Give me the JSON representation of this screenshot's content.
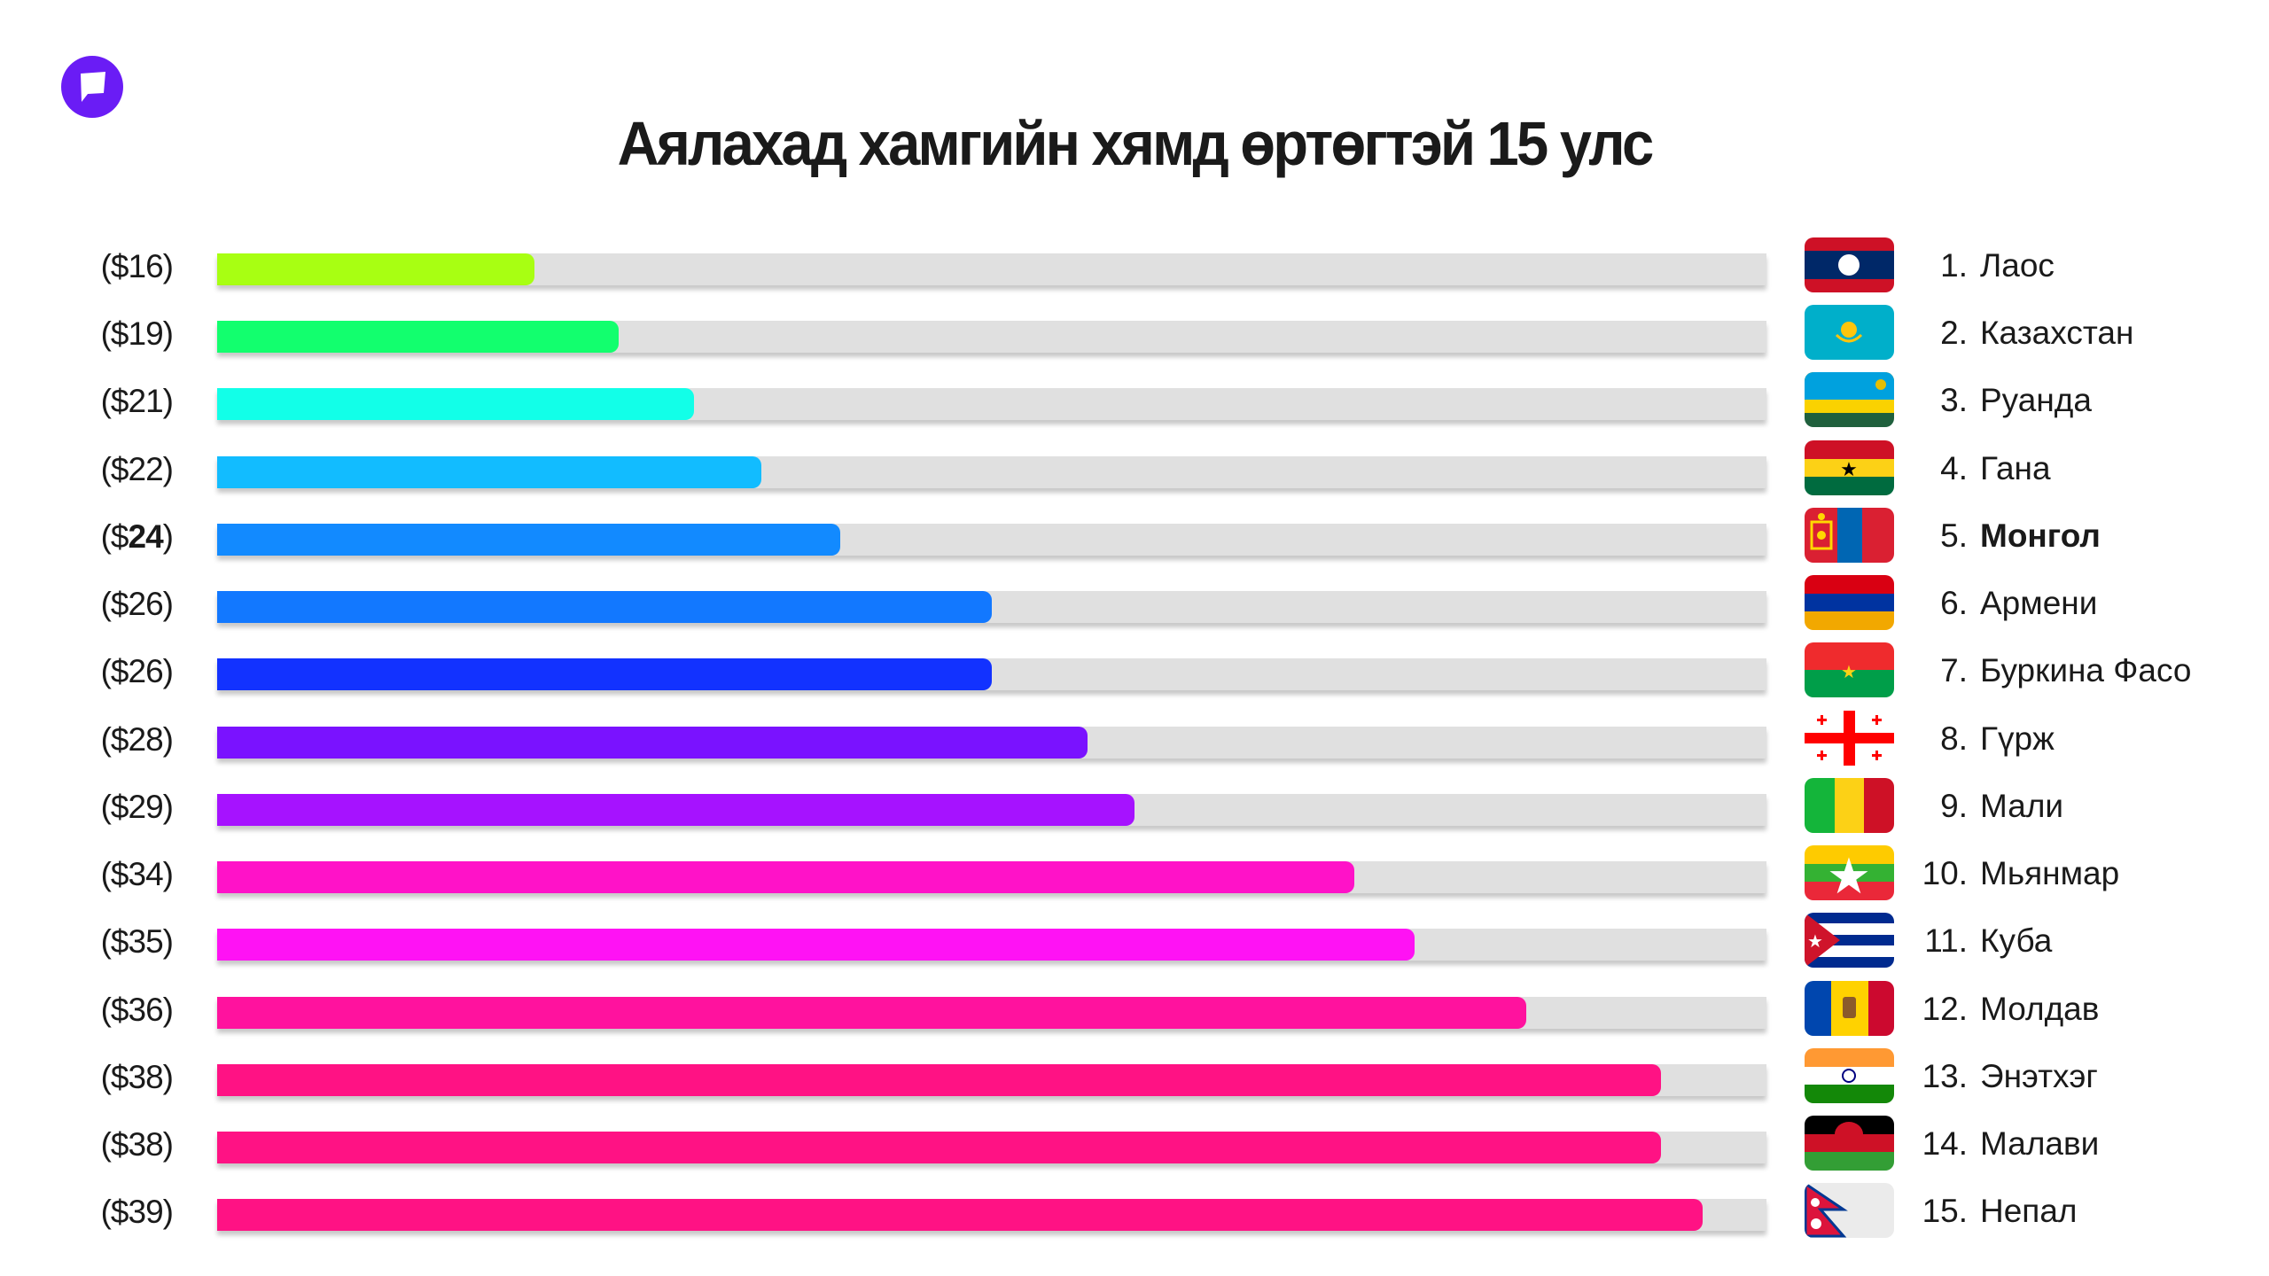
{
  "header": {
    "logo_icon": "speech-bubble-logo",
    "logo_color": "#6a1cf5",
    "title": "Аялахад хамгийн хямд өртөгтэй 15 улс"
  },
  "rows": [
    {
      "rank": "1.",
      "country": "Лаос",
      "price_label": "($16)",
      "price_prefix": "($",
      "price_num": "16",
      "price_suffix": ")",
      "color": "#a8ff12",
      "flag": "laos-flag"
    },
    {
      "rank": "2.",
      "country": "Казахстан",
      "price_label": "($19)",
      "price_prefix": "($",
      "price_num": "19",
      "price_suffix": ")",
      "color": "#12ff6e",
      "flag": "kazakhstan-flag"
    },
    {
      "rank": "3.",
      "country": "Руанда",
      "price_label": "($21)",
      "price_prefix": "($",
      "price_num": "21",
      "price_suffix": ")",
      "color": "#12ffe8",
      "flag": "rwanda-flag"
    },
    {
      "rank": "4.",
      "country": "Гана",
      "price_label": "($22)",
      "price_prefix": "($",
      "price_num": "22",
      "price_suffix": ")",
      "color": "#12bcff",
      "flag": "ghana-flag"
    },
    {
      "rank": "5.",
      "country": "Монгол",
      "price_label": "($24)",
      "price_prefix": "($",
      "price_num": "24",
      "price_suffix": ")",
      "color": "#128aff",
      "flag": "mongolia-flag",
      "highlight": true
    },
    {
      "rank": "6.",
      "country": "Армени",
      "price_label": "($26)",
      "price_prefix": "($",
      "price_num": "26",
      "price_suffix": ")",
      "color": "#1278ff",
      "flag": "armenia-flag"
    },
    {
      "rank": "7.",
      "country": "Буркина Фасо",
      "price_label": "($26)",
      "price_prefix": "($",
      "price_num": "26",
      "price_suffix": ")",
      "color": "#1232ff",
      "flag": "burkina-faso-flag"
    },
    {
      "rank": "8.",
      "country": "Гүрж",
      "price_label": "($28)",
      "price_prefix": "($",
      "price_num": "28",
      "price_suffix": ")",
      "color": "#7a12ff",
      "flag": "georgia-flag"
    },
    {
      "rank": "9.",
      "country": "Мали",
      "price_label": "($29)",
      "price_prefix": "($",
      "price_num": "29",
      "price_suffix": ")",
      "color": "#a612ff",
      "flag": "mali-flag"
    },
    {
      "rank": "10.",
      "country": "Мьянмар",
      "price_label": "($34)",
      "price_prefix": "($",
      "price_num": "34",
      "price_suffix": ")",
      "color": "#ff12c8",
      "flag": "myanmar-flag"
    },
    {
      "rank": "11.",
      "country": "Куба",
      "price_label": "($35)",
      "price_prefix": "($",
      "price_num": "35",
      "price_suffix": ")",
      "color": "#ff12f4",
      "flag": "cuba-flag"
    },
    {
      "rank": "12.",
      "country": "Молдав",
      "price_label": "($36)",
      "price_prefix": "($",
      "price_num": "36",
      "price_suffix": ")",
      "color": "#ff129e",
      "flag": "moldova-flag"
    },
    {
      "rank": "13.",
      "country": "Энэтхэг",
      "price_label": "($38)",
      "price_prefix": "($",
      "price_num": "38",
      "price_suffix": ")",
      "color": "#ff1284",
      "flag": "india-flag"
    },
    {
      "rank": "14.",
      "country": "Малави",
      "price_label": "($38)",
      "price_prefix": "($",
      "price_num": "38",
      "price_suffix": ")",
      "color": "#ff1284",
      "flag": "malawi-flag"
    },
    {
      "rank": "15.",
      "country": "Непал",
      "price_label": "($39)",
      "price_prefix": "($",
      "price_num": "39",
      "price_suffix": ")",
      "color": "#ff1284",
      "flag": "nepal-flag"
    }
  ],
  "chart_data": {
    "type": "bar",
    "orientation": "horizontal",
    "title": "Аялахад хамгийн хямд өртөгтэй 15 улс",
    "xlabel": "",
    "ylabel": "",
    "categories": [
      "Лаос",
      "Казахстан",
      "Руанда",
      "Гана",
      "Монгол",
      "Армени",
      "Буркина Фасо",
      "Гүрж",
      "Мали",
      "Мьянмар",
      "Куба",
      "Молдав",
      "Энэтхэг",
      "Малави",
      "Непал"
    ],
    "values": [
      16,
      19,
      21,
      22,
      24,
      26,
      26,
      28,
      29,
      34,
      35,
      36,
      38,
      38,
      39
    ],
    "value_labels": [
      "($16)",
      "($19)",
      "($21)",
      "($22)",
      "($24)",
      "($26)",
      "($26)",
      "($28)",
      "($29)",
      "($34)",
      "($35)",
      "($36)",
      "($38)",
      "($38)",
      "($39)"
    ],
    "bar_fraction_of_track": [
      0.205,
      0.259,
      0.308,
      0.351,
      0.402,
      0.5,
      0.5,
      0.562,
      0.592,
      0.734,
      0.773,
      0.845,
      0.932,
      0.932,
      0.959
    ],
    "colors": [
      "#a8ff12",
      "#12ff6e",
      "#12ffe8",
      "#12bcff",
      "#128aff",
      "#1278ff",
      "#1232ff",
      "#7a12ff",
      "#a612ff",
      "#ff12c8",
      "#ff12f4",
      "#ff129e",
      "#ff1284",
      "#ff1284",
      "#ff1284"
    ],
    "track_color": "#e0e0e0",
    "highlighted_category": "Монгол",
    "grid": false,
    "legend": "none"
  }
}
